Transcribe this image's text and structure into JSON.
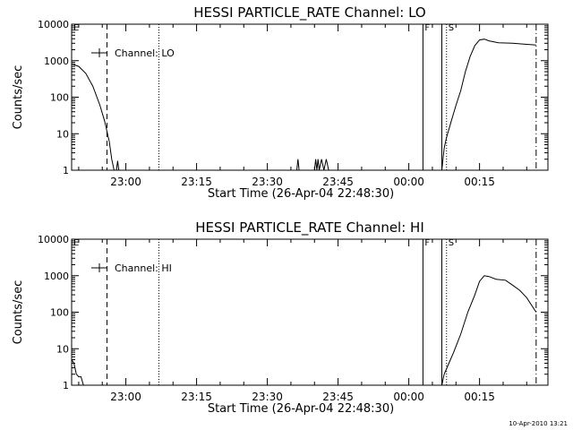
{
  "time_axis": {
    "start": "2004-04-26T22:48:30",
    "end": "2004-04-27T00:29:30"
  },
  "chart_data": [
    {
      "type": "line",
      "title": "HESSI PARTICLE_RATE Channel: LO",
      "xlabel": "Start Time (26-Apr-04 22:48:30)",
      "ylabel": "Counts/sec",
      "yscale": "log",
      "ylim": [
        1,
        10000
      ],
      "x_tick_labels": [
        "23:00",
        "23:15",
        "23:30",
        "23:45",
        "00:00",
        "00:15"
      ],
      "y_tick_labels": [
        "1",
        "10",
        "100",
        "1000",
        "10000"
      ],
      "grid": false,
      "legend": {
        "label": "Channel: LO",
        "position": "top-left"
      },
      "marker_labels": [
        "E",
        "F",
        "S"
      ],
      "markers": [
        {
          "label": "E",
          "time": "2004-04-26T22:48:30",
          "style": "solid"
        },
        {
          "label": "",
          "time": "2004-04-26T22:56:00",
          "style": "dashed"
        },
        {
          "label": "",
          "time": "2004-04-26T23:07:00",
          "style": "dotted"
        },
        {
          "label": "F",
          "time": "2004-04-27T00:03:00",
          "style": "solid"
        },
        {
          "label": "",
          "time": "2004-04-27T00:07:00",
          "style": "solid"
        },
        {
          "label": "S",
          "time": "2004-04-27T00:08:00",
          "style": "dotted"
        },
        {
          "label": "",
          "time": "2004-04-27T00:27:00",
          "style": "dashdot"
        }
      ],
      "series": [
        {
          "segments": [
            [
              [
                "2004-04-26T22:48:30",
                820
              ],
              [
                "2004-04-26T22:50:00",
                700
              ],
              [
                "2004-04-26T22:51:30",
                450
              ],
              [
                "2004-04-26T22:53:00",
                200
              ],
              [
                "2004-04-26T22:54:30",
                60
              ],
              [
                "2004-04-26T22:55:30",
                22
              ],
              [
                "2004-04-26T22:56:30",
                6
              ],
              [
                "2004-04-26T22:57:00",
                2
              ],
              [
                "2004-04-26T22:57:30",
                1
              ]
            ],
            [
              [
                "2004-04-26T22:58:00",
                1
              ],
              [
                "2004-04-26T22:58:15",
                1.8
              ],
              [
                "2004-04-26T22:58:30",
                1
              ]
            ],
            [
              [
                "2004-04-26T23:36:15",
                1
              ],
              [
                "2004-04-26T23:36:30",
                2
              ],
              [
                "2004-04-26T23:36:45",
                1
              ]
            ],
            [
              [
                "2004-04-26T23:40:00",
                1
              ],
              [
                "2004-04-26T23:40:15",
                2
              ],
              [
                "2004-04-26T23:40:30",
                1
              ],
              [
                "2004-04-26T23:40:45",
                2
              ],
              [
                "2004-04-26T23:41:00",
                1
              ],
              [
                "2004-04-26T23:41:30",
                2
              ],
              [
                "2004-04-26T23:42:00",
                1
              ],
              [
                "2004-04-26T23:42:30",
                2
              ],
              [
                "2004-04-26T23:43:00",
                1
              ]
            ],
            [
              [
                "2004-04-27T00:07:00",
                1
              ],
              [
                "2004-04-27T00:07:30",
                4
              ],
              [
                "2004-04-27T00:08:00",
                8
              ],
              [
                "2004-04-27T00:09:00",
                22
              ],
              [
                "2004-04-27T00:10:00",
                60
              ],
              [
                "2004-04-27T00:11:00",
                150
              ],
              [
                "2004-04-27T00:12:00",
                500
              ],
              [
                "2004-04-27T00:13:00",
                1300
              ],
              [
                "2004-04-27T00:14:00",
                2600
              ],
              [
                "2004-04-27T00:15:00",
                3700
              ],
              [
                "2004-04-27T00:16:00",
                3900
              ],
              [
                "2004-04-27T00:17:00",
                3500
              ],
              [
                "2004-04-27T00:19:00",
                3100
              ],
              [
                "2004-04-27T00:22:00",
                3000
              ],
              [
                "2004-04-27T00:25:00",
                2800
              ],
              [
                "2004-04-27T00:27:00",
                2700
              ]
            ]
          ]
        }
      ]
    },
    {
      "type": "line",
      "title": "HESSI PARTICLE_RATE Channel: HI",
      "xlabel": "Start Time (26-Apr-04 22:48:30)",
      "ylabel": "Counts/sec",
      "yscale": "log",
      "ylim": [
        1,
        10000
      ],
      "x_tick_labels": [
        "23:00",
        "23:15",
        "23:30",
        "23:45",
        "00:00",
        "00:15"
      ],
      "y_tick_labels": [
        "1",
        "10",
        "100",
        "1000",
        "10000"
      ],
      "grid": false,
      "legend": {
        "label": "Channel: HI",
        "position": "top-left"
      },
      "marker_labels": [
        "E",
        "F",
        "S"
      ],
      "markers": [
        {
          "label": "E",
          "time": "2004-04-26T22:48:30",
          "style": "solid"
        },
        {
          "label": "",
          "time": "2004-04-26T22:56:00",
          "style": "dashed"
        },
        {
          "label": "",
          "time": "2004-04-26T23:07:00",
          "style": "dotted"
        },
        {
          "label": "F",
          "time": "2004-04-27T00:03:00",
          "style": "solid"
        },
        {
          "label": "",
          "time": "2004-04-27T00:07:00",
          "style": "solid"
        },
        {
          "label": "S",
          "time": "2004-04-27T00:08:00",
          "style": "dotted"
        },
        {
          "label": "",
          "time": "2004-04-27T00:27:00",
          "style": "dashdot"
        }
      ],
      "series": [
        {
          "segments": [
            [
              [
                "2004-04-26T22:48:30",
                5
              ],
              [
                "2004-04-26T22:49:00",
                4
              ],
              [
                "2004-04-26T22:49:30",
                2
              ],
              [
                "2004-04-26T22:50:00",
                1.7
              ],
              [
                "2004-04-26T22:50:30",
                1.7
              ],
              [
                "2004-04-26T22:51:00",
                1
              ]
            ],
            [
              [
                "2004-04-27T00:07:00",
                1
              ],
              [
                "2004-04-27T00:07:30",
                2
              ],
              [
                "2004-04-27T00:08:30",
                4
              ],
              [
                "2004-04-27T00:09:30",
                8
              ],
              [
                "2004-04-27T00:11:00",
                25
              ],
              [
                "2004-04-27T00:12:30",
                100
              ],
              [
                "2004-04-27T00:14:00",
                300
              ],
              [
                "2004-04-27T00:15:00",
                700
              ],
              [
                "2004-04-27T00:16:00",
                1000
              ],
              [
                "2004-04-27T00:17:00",
                950
              ],
              [
                "2004-04-27T00:18:30",
                800
              ],
              [
                "2004-04-27T00:20:30",
                750
              ],
              [
                "2004-04-27T00:22:00",
                550
              ],
              [
                "2004-04-27T00:23:30",
                400
              ],
              [
                "2004-04-27T00:25:00",
                250
              ],
              [
                "2004-04-27T00:27:00",
                100
              ]
            ]
          ]
        }
      ]
    }
  ],
  "footer": {
    "timestamp": "10-Apr-2010 13:21"
  }
}
